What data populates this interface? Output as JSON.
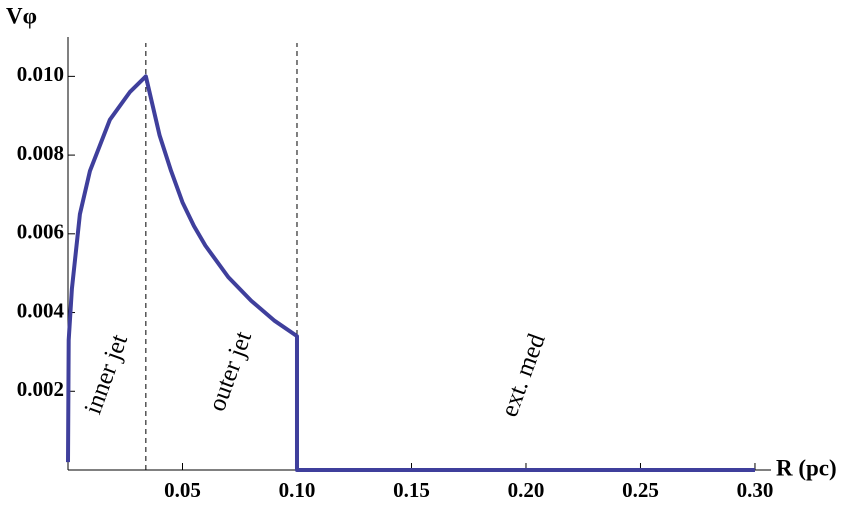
{
  "chart_data": {
    "type": "line",
    "y_label": "Vφ",
    "x_label": "R (pc)",
    "x": [
      0,
      0.0003,
      0.0017,
      0.0052,
      0.0096,
      0.0183,
      0.027,
      0.034,
      0.04,
      0.045,
      0.05,
      0.055,
      0.06,
      0.07,
      0.08,
      0.09,
      0.1,
      0.1,
      0.3
    ],
    "series": [
      {
        "color": "#3f3f9c",
        "values": [
          0.0002,
          0.0033,
          0.0046,
          0.0065,
          0.0076,
          0.0089,
          0.0096,
          0.01,
          0.0085,
          0.0076,
          0.0068,
          0.0062,
          0.0057,
          0.0049,
          0.0043,
          0.0038,
          0.0034,
          0,
          0
        ]
      }
    ],
    "xlim": [
      0,
      0.307
    ],
    "ylim": [
      0,
      0.011
    ],
    "xticks": [
      0.05,
      {
        "value": 0.1,
        "label": "0.10"
      },
      0.15,
      {
        "value": 0.2,
        "label": "0.20"
      },
      0.25,
      {
        "value": 0.3,
        "label": "0.30"
      }
    ],
    "yticks": [
      0.002,
      0.004,
      0.006,
      0.008,
      {
        "value": 0.01,
        "label": "0.010"
      }
    ],
    "vlines": [
      0.034,
      0.1
    ],
    "annotations": [
      "inner jet",
      "outer jet",
      "ext. med"
    ]
  }
}
